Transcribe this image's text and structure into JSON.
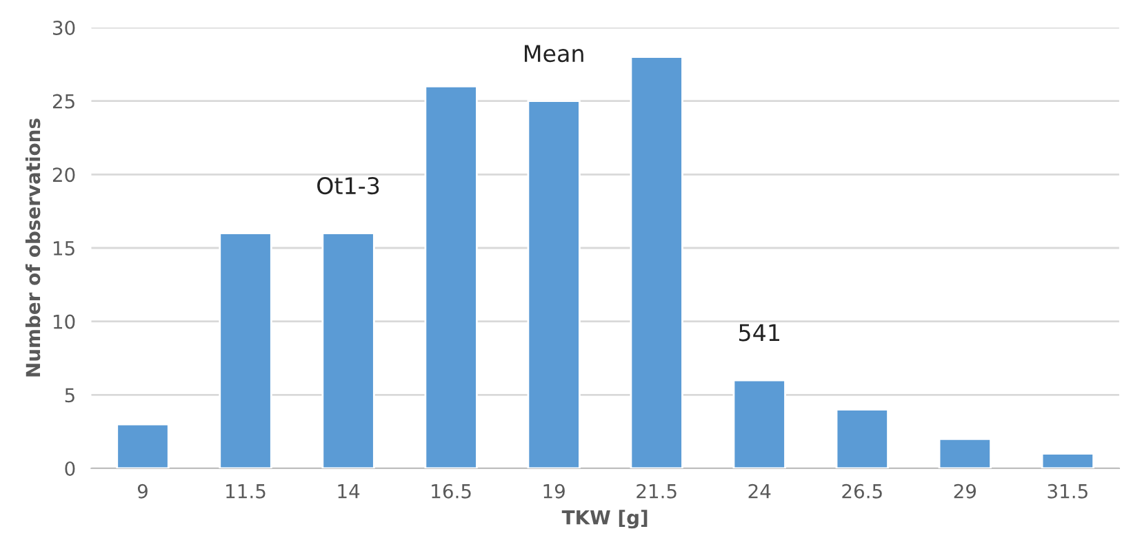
{
  "chart_data": {
    "type": "bar",
    "xlabel": "TKW [g]",
    "ylabel": "Number of observations",
    "categories": [
      "9",
      "11.5",
      "14",
      "16.5",
      "19",
      "21.5",
      "24",
      "26.5",
      "29",
      "31.5"
    ],
    "values": [
      3,
      16,
      16,
      26,
      25,
      28,
      6,
      4,
      2,
      1
    ],
    "color": "#5b9bd5",
    "ylim": [
      0,
      30
    ],
    "yticks": [
      0,
      5,
      10,
      15,
      20,
      25,
      30
    ],
    "grid": "y",
    "annotations": [
      {
        "text": "Ot1-3",
        "x": "14",
        "y": 16
      },
      {
        "text": "Mean",
        "x": "19",
        "y": 25
      },
      {
        "text": "541",
        "x": "24",
        "y": 6
      }
    ]
  }
}
